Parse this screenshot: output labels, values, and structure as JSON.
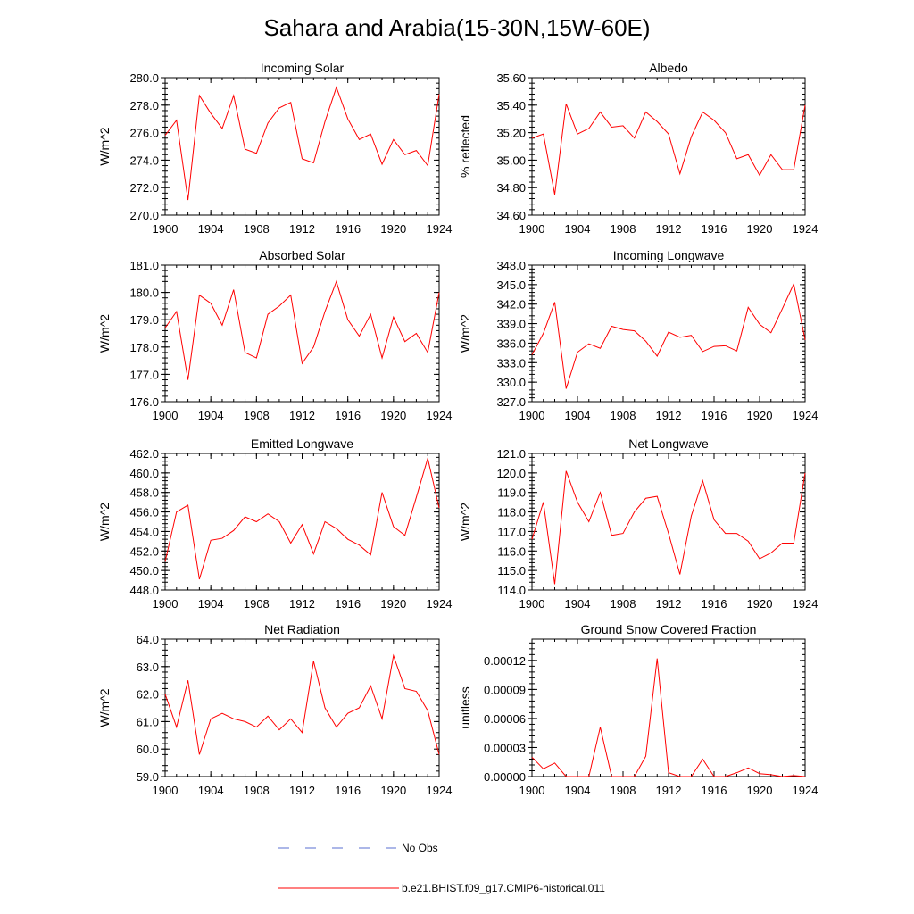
{
  "title": "Sahara and Arabia(15-30N,15W-60E)",
  "legend": {
    "obs_label": "No Obs",
    "obs_color": "#5a6fd1",
    "model_label": "b.e21.BHIST.f09_g17.CMIP6-historical.011",
    "model_color": "#ff0000"
  },
  "chart_data": [
    {
      "type": "line",
      "title": "Incoming Solar",
      "ylabel": "W/m^2",
      "xlim": [
        1900,
        1924
      ],
      "ylim": [
        270.0,
        280.0
      ],
      "x_ticks": [
        1900,
        1904,
        1908,
        1912,
        1916,
        1920,
        1924
      ],
      "y_ticks": [
        "270.0",
        "272.0",
        "274.0",
        "276.0",
        "278.0",
        "280.0"
      ],
      "series": [
        {
          "values": [
            275.8,
            276.9,
            271.1,
            278.7,
            277.4,
            276.3,
            278.7,
            274.8,
            274.5,
            276.7,
            277.8,
            278.2,
            274.1,
            273.8,
            276.8,
            279.3,
            277.0,
            275.5,
            275.9,
            273.7,
            275.5,
            274.4,
            274.7,
            273.6,
            278.8
          ]
        }
      ]
    },
    {
      "type": "line",
      "title": "Albedo",
      "ylabel": "% reflected",
      "xlim": [
        1900,
        1924
      ],
      "ylim": [
        34.6,
        35.6
      ],
      "x_ticks": [
        1900,
        1904,
        1908,
        1912,
        1916,
        1920,
        1924
      ],
      "y_ticks": [
        "34.60",
        "34.80",
        "35.00",
        "35.20",
        "35.40",
        "35.60"
      ],
      "series": [
        {
          "values": [
            35.16,
            35.19,
            34.75,
            35.41,
            35.19,
            35.23,
            35.35,
            35.24,
            35.25,
            35.16,
            35.35,
            35.28,
            35.19,
            34.9,
            35.17,
            35.35,
            35.29,
            35.2,
            35.01,
            35.04,
            34.89,
            35.04,
            34.93,
            34.93,
            35.4
          ]
        }
      ]
    },
    {
      "type": "line",
      "title": "Absorbed Solar",
      "ylabel": "W/m^2",
      "xlim": [
        1900,
        1924
      ],
      "ylim": [
        176.0,
        181.0
      ],
      "x_ticks": [
        1900,
        1904,
        1908,
        1912,
        1916,
        1920,
        1924
      ],
      "y_ticks": [
        "176.0",
        "177.0",
        "178.0",
        "179.0",
        "180.0",
        "181.0"
      ],
      "series": [
        {
          "values": [
            178.7,
            179.3,
            176.8,
            179.9,
            179.6,
            178.8,
            180.1,
            177.8,
            177.6,
            179.2,
            179.5,
            179.9,
            177.4,
            178.0,
            179.3,
            180.4,
            179.0,
            178.4,
            179.2,
            177.6,
            179.1,
            178.2,
            178.5,
            177.8,
            180.0
          ]
        }
      ]
    },
    {
      "type": "line",
      "title": "Incoming Longwave",
      "ylabel": "W/m^2",
      "xlim": [
        1900,
        1924
      ],
      "ylim": [
        327.0,
        348.0
      ],
      "x_ticks": [
        1900,
        1904,
        1908,
        1912,
        1916,
        1920,
        1924
      ],
      "y_ticks": [
        "327.0",
        "330.0",
        "333.0",
        "336.0",
        "339.0",
        "342.0",
        "345.0",
        "348.0"
      ],
      "series": [
        {
          "values": [
            334.2,
            337.5,
            342.3,
            329.0,
            334.6,
            335.9,
            335.2,
            338.6,
            338.1,
            337.9,
            336.3,
            334.0,
            337.7,
            336.9,
            337.2,
            334.7,
            335.5,
            335.6,
            334.8,
            341.5,
            338.9,
            337.6,
            341.3,
            345.1,
            336.5
          ]
        }
      ]
    },
    {
      "type": "line",
      "title": "Emitted Longwave",
      "ylabel": "W/m^2",
      "xlim": [
        1900,
        1924
      ],
      "ylim": [
        448.0,
        462.0
      ],
      "x_ticks": [
        1900,
        1904,
        1908,
        1912,
        1916,
        1920,
        1924
      ],
      "y_ticks": [
        "448.0",
        "450.0",
        "452.0",
        "454.0",
        "456.0",
        "458.0",
        "460.0",
        "462.0"
      ],
      "series": [
        {
          "values": [
            450.9,
            456.0,
            456.7,
            449.1,
            453.1,
            453.3,
            454.1,
            455.5,
            455.0,
            455.8,
            455.0,
            452.8,
            454.7,
            451.7,
            455.0,
            454.3,
            453.2,
            452.6,
            451.6,
            458.0,
            454.5,
            453.6,
            457.5,
            461.5,
            456.4
          ]
        }
      ]
    },
    {
      "type": "line",
      "title": "Net Longwave",
      "ylabel": "W/m^2",
      "xlim": [
        1900,
        1924
      ],
      "ylim": [
        114.0,
        121.0
      ],
      "x_ticks": [
        1900,
        1904,
        1908,
        1912,
        1916,
        1920,
        1924
      ],
      "y_ticks": [
        "114.0",
        "115.0",
        "116.0",
        "117.0",
        "118.0",
        "119.0",
        "120.0",
        "121.0"
      ],
      "series": [
        {
          "values": [
            116.6,
            118.5,
            114.3,
            120.1,
            118.5,
            117.5,
            119.0,
            116.8,
            116.9,
            118.0,
            118.7,
            118.8,
            116.9,
            114.8,
            117.8,
            119.6,
            117.6,
            116.9,
            116.9,
            116.5,
            115.6,
            115.9,
            116.4,
            116.4,
            120.0
          ]
        }
      ]
    },
    {
      "type": "line",
      "title": "Net Radiation",
      "ylabel": "W/m^2",
      "xlim": [
        1900,
        1924
      ],
      "ylim": [
        59.0,
        64.0
      ],
      "x_ticks": [
        1900,
        1904,
        1908,
        1912,
        1916,
        1920,
        1924
      ],
      "y_ticks": [
        "59.0",
        "60.0",
        "61.0",
        "62.0",
        "63.0",
        "64.0"
      ],
      "series": [
        {
          "values": [
            62.0,
            60.8,
            62.5,
            59.8,
            61.1,
            61.3,
            61.1,
            61.0,
            60.8,
            61.2,
            60.7,
            61.1,
            60.6,
            63.2,
            61.5,
            60.8,
            61.3,
            61.5,
            62.3,
            61.1,
            63.4,
            62.2,
            62.1,
            61.4,
            59.8
          ]
        }
      ]
    },
    {
      "type": "line",
      "title": "Ground Snow Covered Fraction",
      "ylabel": "unitless",
      "xlim": [
        1900,
        1924
      ],
      "ylim": [
        0,
        0.000142
      ],
      "x_ticks": [
        1900,
        1904,
        1908,
        1912,
        1916,
        1920,
        1924
      ],
      "y_tick_values": [
        0,
        3e-05,
        6e-05,
        9e-05,
        0.00012
      ],
      "y_ticks": [
        "0.00000",
        "0.00003",
        "0.00006",
        "0.00009",
        "0.00012"
      ],
      "series": [
        {
          "values": [
            2e-05,
            8e-06,
            1.4e-05,
            0.0,
            0.0,
            0.0,
            5.1e-05,
            0.0,
            0.0,
            0.0,
            2.1e-05,
            0.000122,
            4e-06,
            0.0,
            0.0,
            1.8e-05,
            0.0,
            0.0,
            4e-06,
            9e-06,
            3e-06,
            2e-06,
            0.0,
            1e-06,
            0.0
          ]
        }
      ]
    }
  ]
}
